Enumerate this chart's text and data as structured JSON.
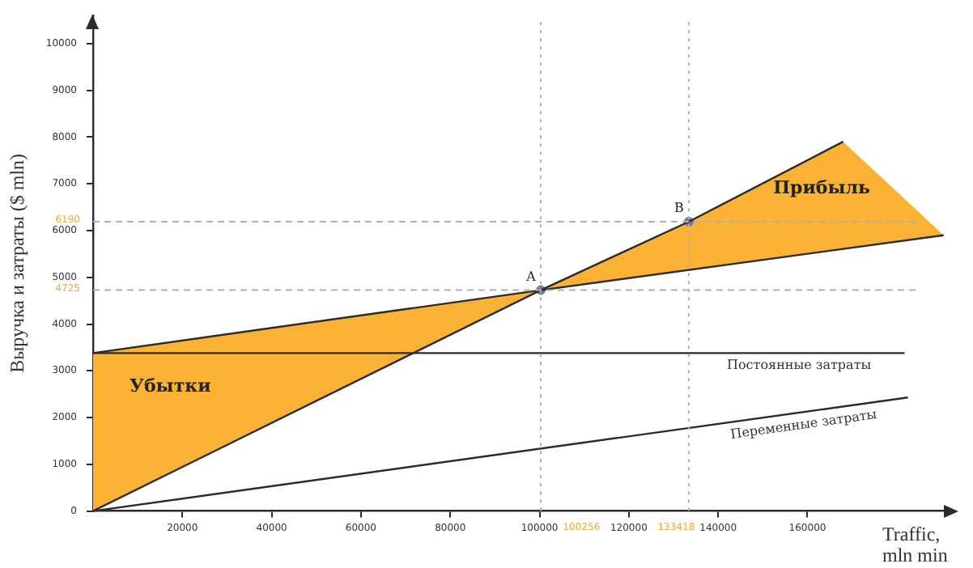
{
  "chart_data": {
    "type": "line",
    "xlabel": "Traffic, mln min",
    "ylabel": "Выручка и затраты ($ mln)",
    "xlim": [
      0,
      192000
    ],
    "ylim": [
      0,
      10600
    ],
    "xticks": [
      20000,
      40000,
      60000,
      80000,
      100000,
      120000,
      140000,
      160000
    ],
    "yticks": [
      0,
      1000,
      2000,
      3000,
      4000,
      5000,
      6000,
      7000,
      8000,
      9000,
      10000
    ],
    "grid": false,
    "legend": false,
    "series": [
      {
        "color": "#2b2b2b",
        "x": [
          0,
          100256,
          133418,
          168000
        ],
        "values": [
          0,
          4725,
          6190,
          7900
        ]
      },
      {
        "color": "#2b2b2b",
        "x": [
          0,
          100256,
          190500
        ],
        "values": [
          3380,
          4725,
          5900
        ]
      },
      {
        "name": "Постоянные затраты",
        "color": "#2b2b2b",
        "x": [
          0,
          181750
        ],
        "values": [
          3380,
          3380
        ]
      },
      {
        "name": "Переменные затраты",
        "color": "#2b2b2b",
        "x": [
          0,
          182500
        ],
        "values": [
          0,
          2430
        ]
      },
      {
        "type": "scatter",
        "marker": "circle",
        "color": "#7a7a9a",
        "x": [
          100256,
          133418
        ],
        "values": [
          4725,
          6190
        ]
      }
    ],
    "ref_lines": [
      {
        "axis": "x",
        "value": 100256,
        "label": "100256",
        "color": "#b0b0b0",
        "line_style": "dotted"
      },
      {
        "axis": "x",
        "value": 133418,
        "label": "133418",
        "color": "#b0b0b0",
        "line_style": "dotted"
      },
      {
        "axis": "y",
        "value": 4725,
        "label": "4725",
        "color": "#b0b0b0",
        "line_style": "dashed"
      },
      {
        "axis": "y",
        "value": 6190,
        "label": "6190",
        "color": "#b0b0b0",
        "line_style": "dashed"
      }
    ],
    "annotations": [
      {
        "text": "A",
        "x": 100256,
        "y": 4725
      },
      {
        "text": "B",
        "x": 133418,
        "y": 6190
      },
      "Убытки",
      "Прибыль"
    ]
  }
}
